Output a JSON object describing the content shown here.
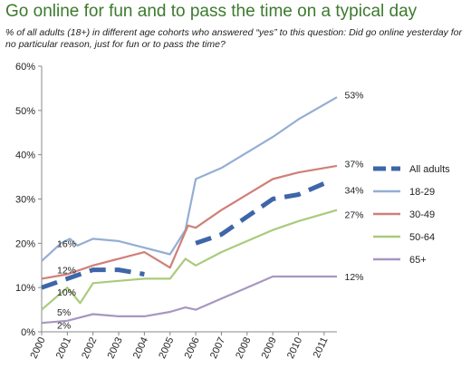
{
  "header": {
    "title": "Go online for fun and to pass the time on a typical day",
    "subtitle": "% of all adults (18+) in different age cohorts who answered “yes” to this question: Did go online yesterday for no particular reason, just for fun or to pass the time?"
  },
  "chart_data": {
    "type": "line",
    "title": "Go online for fun and to pass the time on a typical day",
    "xlabel": "",
    "ylabel": "",
    "ylim": [
      0,
      60
    ],
    "yticks": [
      "0%",
      "10%",
      "20%",
      "30%",
      "40%",
      "50%",
      "60%"
    ],
    "ytick_values": [
      0,
      10,
      20,
      30,
      40,
      50,
      60
    ],
    "xticks": [
      "2000",
      "2001",
      "2002",
      "2003",
      "2004",
      "2005",
      "2006",
      "2007",
      "2008",
      "2009",
      "2010",
      "2011"
    ],
    "xlim": [
      2000,
      2011.5
    ],
    "legend_position": "right",
    "series": [
      {
        "name": "All adults",
        "color": "#3e66a8",
        "dashed": true,
        "x": [
          2000,
          2001,
          2002,
          2003,
          2004,
          2005,
          2006,
          2007,
          2008,
          2009,
          2010,
          2011.2
        ],
        "y": [
          10,
          12,
          14,
          14,
          13,
          null,
          20,
          22,
          26,
          30,
          31,
          34
        ]
      },
      {
        "name": "18-29",
        "color": "#94aed3",
        "dashed": false,
        "x": [
          2000,
          2000.75,
          2001.1,
          2001.4,
          2002,
          2003,
          2004,
          2005,
          2005.6,
          2006,
          2007,
          2008,
          2009,
          2010,
          2011.5
        ],
        "y": [
          16,
          20,
          21,
          19.5,
          21,
          20.5,
          19,
          17.5,
          23,
          34.5,
          37,
          40.5,
          44,
          48,
          53
        ]
      },
      {
        "name": "30-49",
        "color": "#cf8078",
        "dashed": false,
        "x": [
          2000,
          2001,
          2002,
          2003,
          2004,
          2005,
          2005.7,
          2006,
          2007,
          2008,
          2009,
          2010,
          2011.5
        ],
        "y": [
          12,
          13,
          15,
          16.5,
          18,
          14.5,
          24,
          23.5,
          27.5,
          31,
          34.5,
          36,
          37.5
        ]
      },
      {
        "name": "50-64",
        "color": "#aacb7c",
        "dashed": false,
        "x": [
          2000,
          2001,
          2001.5,
          2002,
          2003,
          2004,
          2005,
          2005.6,
          2006,
          2007,
          2008,
          2009,
          2010,
          2011.5
        ],
        "y": [
          5,
          10,
          6.5,
          11,
          11.5,
          12,
          12,
          16.5,
          15,
          18,
          20.5,
          23,
          25,
          27.5
        ]
      },
      {
        "name": "65+",
        "color": "#a896c2",
        "dashed": false,
        "x": [
          2000,
          2001,
          2002,
          2003,
          2004,
          2005,
          2005.6,
          2006,
          2007,
          2008,
          2009,
          2010,
          2011.5
        ],
        "y": [
          2,
          2.5,
          4,
          3.5,
          3.5,
          4.5,
          5.5,
          5,
          7.5,
          10,
          12.5,
          12.5,
          12.5
        ]
      }
    ],
    "annotations": [
      {
        "text": "16%",
        "x": 2000.6,
        "y": 20
      },
      {
        "text": "12%",
        "x": 2000.6,
        "y": 14
      },
      {
        "text": "10%",
        "x": 2000.6,
        "y": 9
      },
      {
        "text": "5%",
        "x": 2000.6,
        "y": 4.5
      },
      {
        "text": "2%",
        "x": 2000.6,
        "y": 1.5
      },
      {
        "text": "53%",
        "x": 2011.8,
        "y": 53.5
      },
      {
        "text": "37%",
        "x": 2011.8,
        "y": 38
      },
      {
        "text": "34%",
        "x": 2011.8,
        "y": 32
      },
      {
        "text": "27%",
        "x": 2011.8,
        "y": 26.5
      },
      {
        "text": "12%",
        "x": 2011.8,
        "y": 12.5
      }
    ]
  }
}
